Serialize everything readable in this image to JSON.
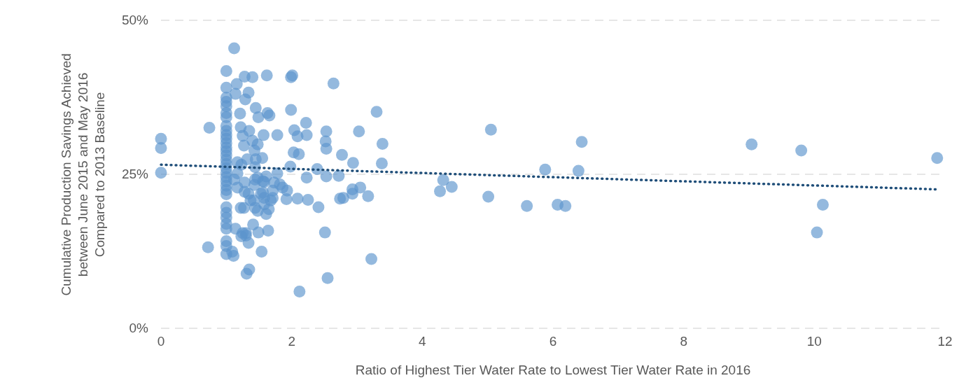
{
  "chart_data": {
    "type": "scatter",
    "xlabel": "Ratio of Highest Tier Water Rate to Lowest Tier Water Rate in 2016",
    "ylabel": "Cumulative Production Savings Achieved\nbetween June 2015 and May 2016\nCompared to 2013 Baseline",
    "xlim": [
      0,
      12
    ],
    "xticks": [
      0,
      2,
      4,
      6,
      8,
      10,
      12
    ],
    "ylim": [
      0,
      50
    ],
    "yticks": [
      {
        "value": 0,
        "label": "0%"
      },
      {
        "value": 25,
        "label": "25%"
      },
      {
        "value": 50,
        "label": "50%"
      }
    ],
    "grid": "y",
    "legend": false,
    "marker": "circle",
    "series": [
      {
        "color": "#5b93cc",
        "x": [
          0,
          0,
          0,
          0.72,
          0.74,
          1,
          1,
          1,
          1,
          1,
          1,
          1,
          1,
          1,
          1,
          1,
          1,
          1,
          1,
          1,
          1,
          1,
          1,
          1,
          1,
          1,
          1,
          1,
          1,
          1,
          1,
          1,
          1,
          1,
          1,
          1,
          1,
          1.12,
          1.16,
          1.14,
          1.21,
          1.25,
          1.23,
          1.28,
          1.11,
          1.09,
          1.23,
          1.3,
          1.22,
          1.34,
          1.37,
          1.44,
          1.48,
          1.45,
          1.49,
          1.48,
          1.43,
          1.44,
          1.28,
          1.4,
          1.34,
          1.29,
          1.22,
          1.27,
          1.35,
          1.4,
          1.32,
          1.17,
          1.17,
          1.17,
          1.28,
          1.12,
          1.41,
          1.3,
          1.34,
          1.31,
          1.35,
          1.25,
          1.14,
          1.27,
          1.42,
          1.43,
          1.48,
          1.57,
          1.62,
          1.63,
          1.66,
          1.58,
          1.61,
          1.65,
          1.71,
          1.71,
          1.73,
          1.54,
          1.49,
          1.44,
          1.56,
          1.61,
          1.45,
          1.56,
          1.64,
          1.58,
          1.78,
          1.78,
          1.68,
          1.55,
          1.53,
          1.58,
          1.82,
          1.86,
          1.93,
          1.92,
          1.98,
          1.99,
          1.99,
          2.01,
          2.03,
          2.04,
          2.09,
          2.09,
          2.11,
          2.12,
          2.22,
          2.23,
          2.23,
          2.25,
          2.39,
          2.41,
          2.51,
          2.55,
          2.53,
          2.52,
          2.53,
          2.53,
          2.64,
          2.72,
          2.74,
          2.79,
          2.77,
          2.94,
          2.93,
          2.93,
          3.05,
          3.03,
          3.17,
          3.22,
          3.3,
          3.38,
          3.39,
          4.27,
          4.32,
          4.45,
          5.01,
          5.05,
          5.6,
          5.88,
          6.07,
          6.19,
          6.39,
          6.44,
          9.04,
          9.8,
          10.04,
          10.13,
          11.88
        ],
        "values": [
          30.8,
          29.3,
          25.3,
          13.2,
          32.6,
          41.8,
          39.1,
          37.5,
          36.8,
          36.1,
          35,
          34.3,
          32.9,
          32.1,
          31.4,
          30.8,
          30.1,
          29.4,
          28.8,
          28.1,
          27.4,
          26.7,
          26,
          25.3,
          24.6,
          23.9,
          23.2,
          22.5,
          21.8,
          19.7,
          18.8,
          18,
          17,
          16.2,
          14.2,
          13.4,
          12.1,
          45.5,
          39.7,
          38.1,
          34.9,
          31.3,
          26.6,
          23.7,
          11.8,
          12.5,
          15,
          15.5,
          19.6,
          21.9,
          20.8,
          24.2,
          24.5,
          35.8,
          34.3,
          29.9,
          28.9,
          26.2,
          40.9,
          40.8,
          38.3,
          37.2,
          32.7,
          29.7,
          32.1,
          30.5,
          27.5,
          22.9,
          25.2,
          27,
          22.2,
          24.2,
          16.9,
          15.1,
          13.9,
          8.9,
          9.6,
          15.5,
          16.2,
          19.6,
          20.8,
          23.3,
          19.1,
          31.4,
          41.1,
          35,
          34.6,
          21.2,
          18.6,
          19.4,
          21.2,
          22.4,
          23.7,
          12.5,
          15.6,
          19.6,
          23.9,
          24.7,
          27.5,
          22.1,
          15.9,
          20.2,
          31.4,
          25.2,
          20.8,
          27.7,
          21.9,
          23.8,
          23.4,
          22.9,
          22.4,
          21,
          26.3,
          35.5,
          40.8,
          41.1,
          28.6,
          32.2,
          31.2,
          21.1,
          28.3,
          6,
          33.4,
          31.4,
          24.5,
          20.9,
          25.9,
          19.7,
          15.6,
          8.2,
          32,
          30.4,
          29.2,
          24.7,
          39.8,
          24.8,
          21.1,
          21.2,
          28.2,
          26.9,
          22.6,
          21.9,
          22.9,
          32,
          21.5,
          11.3,
          35.2,
          26.8,
          30,
          22.3,
          24.1,
          23,
          21.4,
          32.3,
          19.9,
          25.8,
          20.1,
          19.9,
          25.6,
          30.3,
          29.9,
          28.9,
          15.6,
          20.1,
          27.7
        ]
      },
      {
        "type": "line",
        "color": "#1f4e79",
        "line_style": "dotted",
        "marker": "none",
        "x": [
          0,
          11.88
        ],
        "values": [
          26.6,
          22.6
        ]
      }
    ]
  }
}
